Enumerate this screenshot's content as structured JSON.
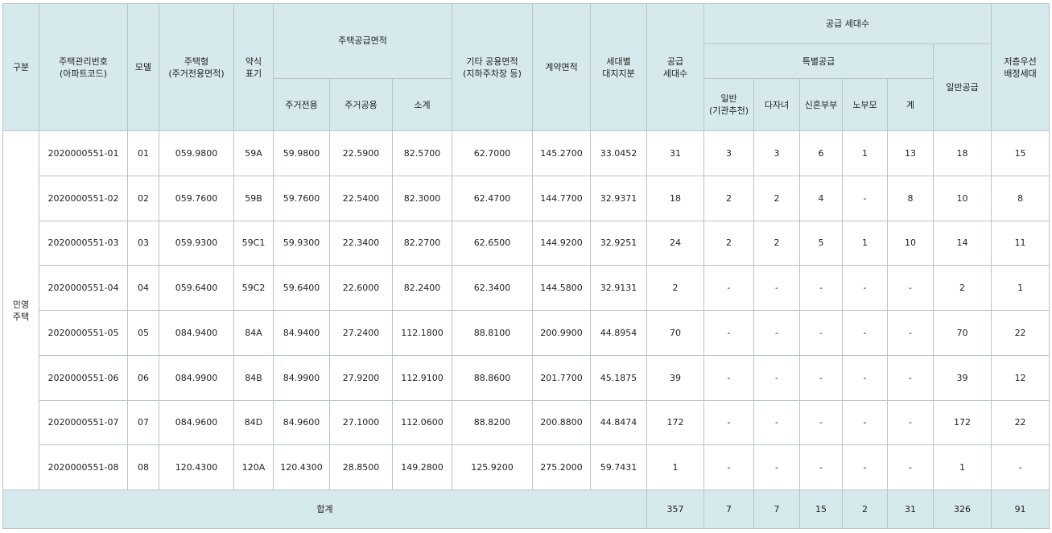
{
  "headers": {
    "category": "구분",
    "house_code": "주택관리번호\n(아파트코드)",
    "model": "모델",
    "house_type": "주택형\n(주거전용면적)",
    "abbr": "약식\n표기",
    "supply_area": "주택공급면적",
    "exclusive": "주거전용",
    "common": "주거공용",
    "subtotal": "소계",
    "other_common": "기타 공용면적\n(지하주차장 등)",
    "contract_area": "계약면적",
    "land_share": "세대별\n대지지분",
    "supply_units": "공급\n세대수",
    "supply_households": "공급  세대수",
    "special_supply": "특별공급",
    "general_inst": "일반\n(기관추천)",
    "multi_child": "다자녀",
    "newlywed": "신혼부부",
    "elderly_parent": "노부모",
    "special_total": "계",
    "general_supply": "일반공급",
    "low_floor": "저층우선\n배정세대"
  },
  "category_value": "민영\n주택",
  "rows": [
    {
      "code": "2020000551-01",
      "model": "01",
      "type": "059.9800",
      "abbr": "59A",
      "exclusive": "59.9800",
      "common": "22.5900",
      "subtotal": "82.5700",
      "other": "62.7000",
      "contract": "145.2700",
      "land": "33.0452",
      "units": "31",
      "inst": "3",
      "multi": "3",
      "newly": "6",
      "elder": "1",
      "sp_total": "13",
      "general": "18",
      "low": "15"
    },
    {
      "code": "2020000551-02",
      "model": "02",
      "type": "059.7600",
      "abbr": "59B",
      "exclusive": "59.7600",
      "common": "22.5400",
      "subtotal": "82.3000",
      "other": "62.4700",
      "contract": "144.7700",
      "land": "32.9371",
      "units": "18",
      "inst": "2",
      "multi": "2",
      "newly": "4",
      "elder": "-",
      "sp_total": "8",
      "general": "10",
      "low": "8"
    },
    {
      "code": "2020000551-03",
      "model": "03",
      "type": "059.9300",
      "abbr": "59C1",
      "exclusive": "59.9300",
      "common": "22.3400",
      "subtotal": "82.2700",
      "other": "62.6500",
      "contract": "144.9200",
      "land": "32.9251",
      "units": "24",
      "inst": "2",
      "multi": "2",
      "newly": "5",
      "elder": "1",
      "sp_total": "10",
      "general": "14",
      "low": "11"
    },
    {
      "code": "2020000551-04",
      "model": "04",
      "type": "059.6400",
      "abbr": "59C2",
      "exclusive": "59.6400",
      "common": "22.6000",
      "subtotal": "82.2400",
      "other": "62.3400",
      "contract": "144.5800",
      "land": "32.9131",
      "units": "2",
      "inst": "-",
      "multi": "-",
      "newly": "-",
      "elder": "-",
      "sp_total": "-",
      "general": "2",
      "low": "1"
    },
    {
      "code": "2020000551-05",
      "model": "05",
      "type": "084.9400",
      "abbr": "84A",
      "exclusive": "84.9400",
      "common": "27.2400",
      "subtotal": "112.1800",
      "other": "88.8100",
      "contract": "200.9900",
      "land": "44.8954",
      "units": "70",
      "inst": "-",
      "multi": "-",
      "newly": "-",
      "elder": "-",
      "sp_total": "-",
      "general": "70",
      "low": "22"
    },
    {
      "code": "2020000551-06",
      "model": "06",
      "type": "084.9900",
      "abbr": "84B",
      "exclusive": "84.9900",
      "common": "27.9200",
      "subtotal": "112.9100",
      "other": "88.8600",
      "contract": "201.7700",
      "land": "45.1875",
      "units": "39",
      "inst": "-",
      "multi": "-",
      "newly": "-",
      "elder": "-",
      "sp_total": "-",
      "general": "39",
      "low": "12"
    },
    {
      "code": "2020000551-07",
      "model": "07",
      "type": "084.9600",
      "abbr": "84D",
      "exclusive": "84.9600",
      "common": "27.1000",
      "subtotal": "112.0600",
      "other": "88.8200",
      "contract": "200.8800",
      "land": "44.8474",
      "units": "172",
      "inst": "-",
      "multi": "-",
      "newly": "-",
      "elder": "-",
      "sp_total": "-",
      "general": "172",
      "low": "22"
    },
    {
      "code": "2020000551-08",
      "model": "08",
      "type": "120.4300",
      "abbr": "120A",
      "exclusive": "120.4300",
      "common": "28.8500",
      "subtotal": "149.2800",
      "other": "125.9200",
      "contract": "275.2000",
      "land": "59.7431",
      "units": "1",
      "inst": "-",
      "multi": "-",
      "newly": "-",
      "elder": "-",
      "sp_total": "-",
      "general": "1",
      "low": "-"
    }
  ],
  "total": {
    "label": "합계",
    "units": "357",
    "inst": "7",
    "multi": "7",
    "newly": "15",
    "elder": "2",
    "sp_total": "31",
    "general": "326",
    "low": "91"
  }
}
